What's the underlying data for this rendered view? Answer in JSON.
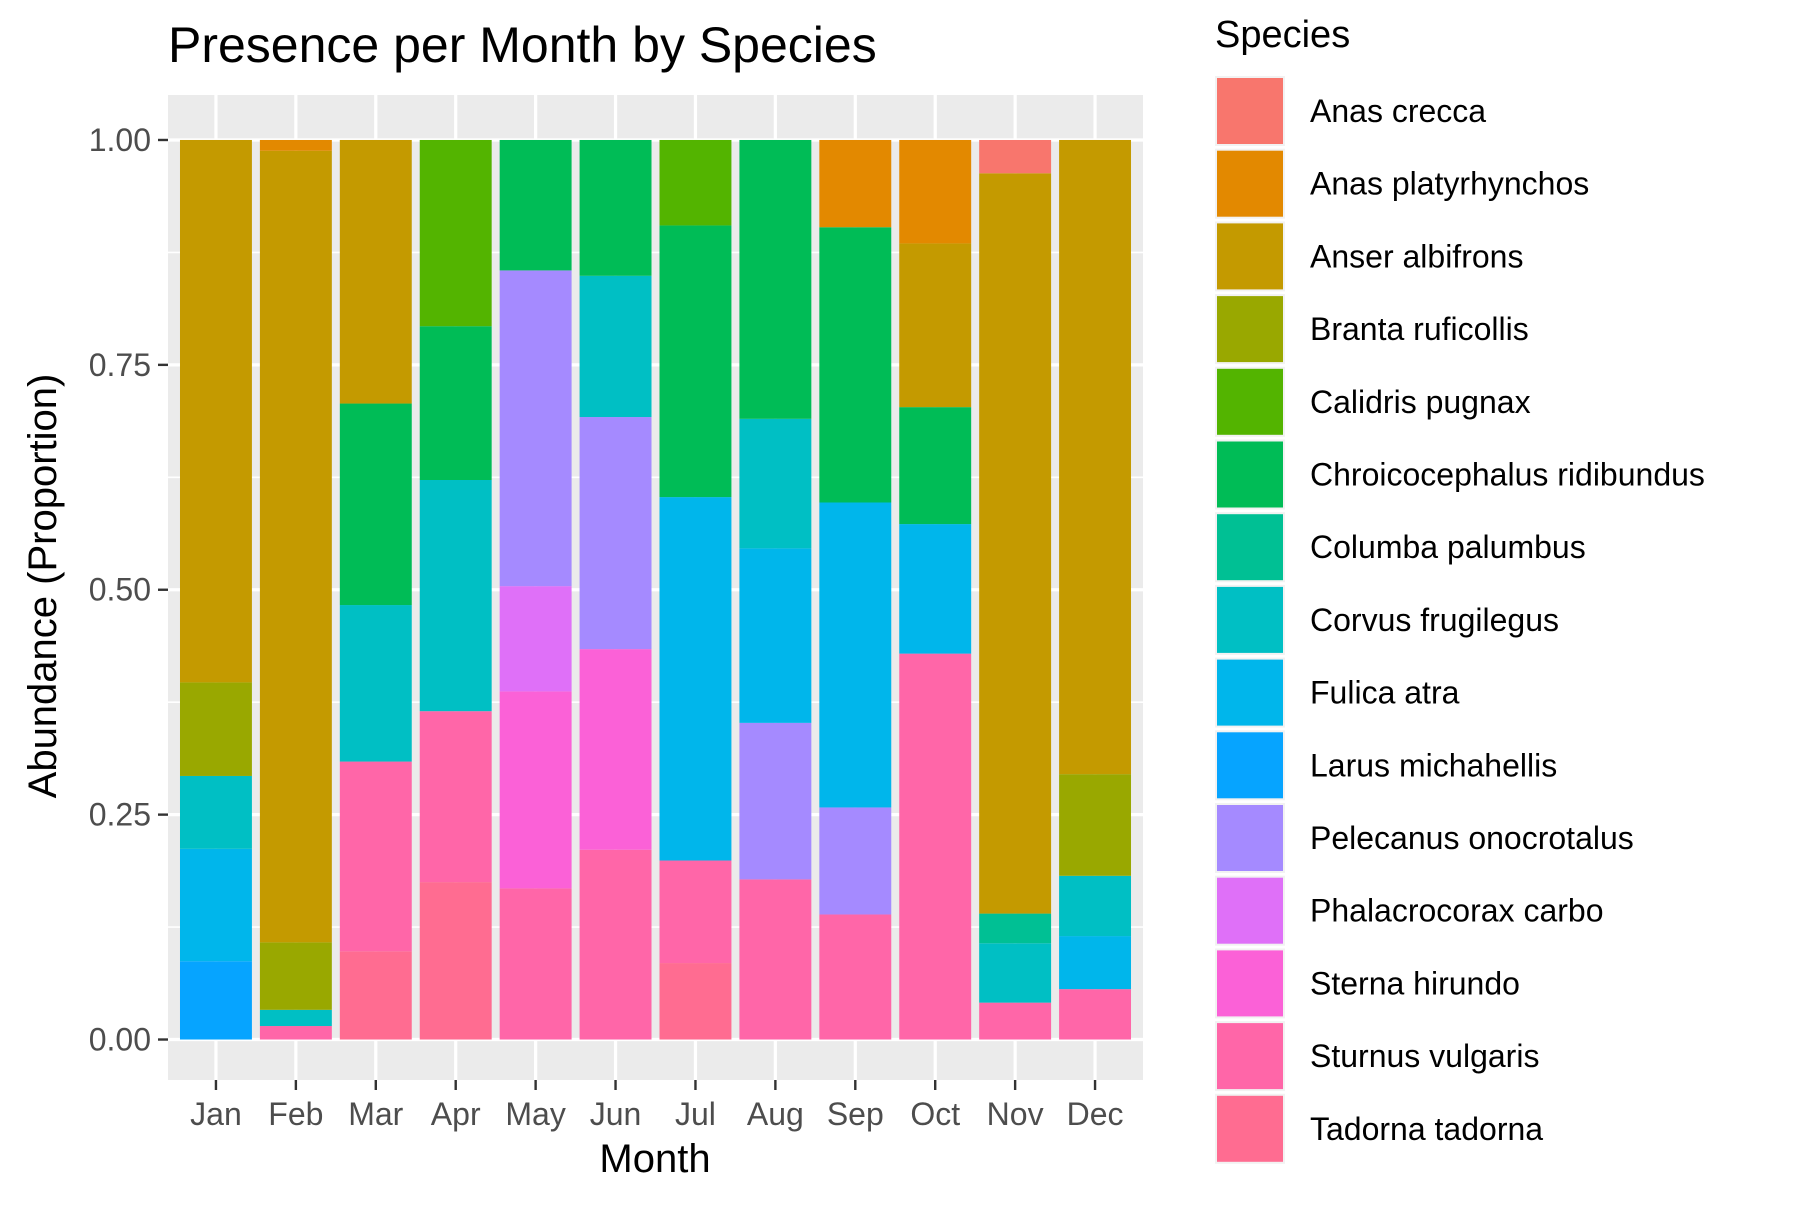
{
  "chart_data": {
    "type": "bar",
    "stacked": true,
    "title": "Presence per Month by Species",
    "xlabel": "Month",
    "ylabel": "Abundance (Proportion)",
    "categories": [
      "Jan",
      "Feb",
      "Mar",
      "Apr",
      "May",
      "Jun",
      "Jul",
      "Aug",
      "Sep",
      "Oct",
      "Nov",
      "Dec"
    ],
    "ylim": [
      -0.045,
      1.05
    ],
    "yticks": [
      0.0,
      0.25,
      0.5,
      0.75,
      1.0
    ],
    "ytick_labels": [
      "0.00",
      "0.25",
      "0.50",
      "0.75",
      "1.00"
    ],
    "grid": true,
    "legend_position": "right",
    "legend_title": "Species",
    "series": [
      {
        "name": "Anas crecca",
        "color": "#F8766D",
        "values": [
          0,
          0,
          0,
          0,
          0,
          0,
          0,
          0,
          0,
          0,
          0.037,
          0
        ]
      },
      {
        "name": "Anas platyrhynchos",
        "color": "#E38900",
        "values": [
          0,
          0.012,
          0,
          0,
          0,
          0,
          0,
          0,
          0.097,
          0.115,
          0,
          0
        ]
      },
      {
        "name": "Anser albifrons",
        "color": "#C49A00",
        "values": [
          0.603,
          0.88,
          0.293,
          0,
          0,
          0,
          0,
          0,
          0,
          0.182,
          0.823,
          0.705
        ]
      },
      {
        "name": "Branta ruficollis",
        "color": "#99A800",
        "values": [
          0.104,
          0.075,
          0,
          0,
          0,
          0,
          0,
          0,
          0,
          0,
          0,
          0.113
        ]
      },
      {
        "name": "Calidris pugnax",
        "color": "#53B400",
        "values": [
          0,
          0,
          0,
          0.207,
          0,
          0,
          0.095,
          0,
          0,
          0,
          0,
          0
        ]
      },
      {
        "name": "Chroicocephalus ridibundus",
        "color": "#00BC56",
        "values": [
          0,
          0,
          0.224,
          0.171,
          0.145,
          0.151,
          0.302,
          0.31,
          0.306,
          0.13,
          0,
          0
        ]
      },
      {
        "name": "Columba palumbus",
        "color": "#00C094",
        "values": [
          0,
          0,
          0,
          0,
          0,
          0,
          0,
          0,
          0,
          0,
          0.033,
          0
        ]
      },
      {
        "name": "Corvus frugilegus",
        "color": "#00BFC4",
        "values": [
          0.081,
          0.018,
          0.174,
          0.257,
          0,
          0.157,
          0,
          0.144,
          0,
          0,
          0.066,
          0.067
        ]
      },
      {
        "name": "Fulica atra",
        "color": "#00B6EB",
        "values": [
          0.125,
          0,
          0,
          0,
          0,
          0,
          0.404,
          0.194,
          0.339,
          0.144,
          0,
          0.059
        ]
      },
      {
        "name": "Larus michahellis",
        "color": "#06A4FF",
        "values": [
          0.087,
          0,
          0,
          0,
          0,
          0,
          0,
          0,
          0,
          0,
          0,
          0
        ]
      },
      {
        "name": "Pelecanus onocrotalus",
        "color": "#A58AFF",
        "values": [
          0,
          0,
          0,
          0,
          0.351,
          0.258,
          0,
          0.174,
          0.119,
          0,
          0,
          0
        ]
      },
      {
        "name": "Phalacrocorax carbo",
        "color": "#DF70F8",
        "values": [
          0,
          0,
          0,
          0,
          0.117,
          0,
          0,
          0,
          0,
          0,
          0,
          0
        ]
      },
      {
        "name": "Sterna hirundo",
        "color": "#FB61D7",
        "values": [
          0,
          0,
          0,
          0,
          0.219,
          0.223,
          0,
          0,
          0,
          0,
          0,
          0
        ]
      },
      {
        "name": "Sturnus vulgaris",
        "color": "#FF66A8",
        "values": [
          0,
          0.015,
          0.211,
          0.19,
          0.168,
          0.211,
          0.114,
          0.178,
          0.139,
          0.429,
          0.041,
          0.056
        ]
      },
      {
        "name": "Tadorna tadorna",
        "color": "#FF6C91",
        "values": [
          0,
          0,
          0.098,
          0.175,
          0,
          0,
          0.085,
          0,
          0,
          0,
          0,
          0
        ]
      }
    ]
  }
}
